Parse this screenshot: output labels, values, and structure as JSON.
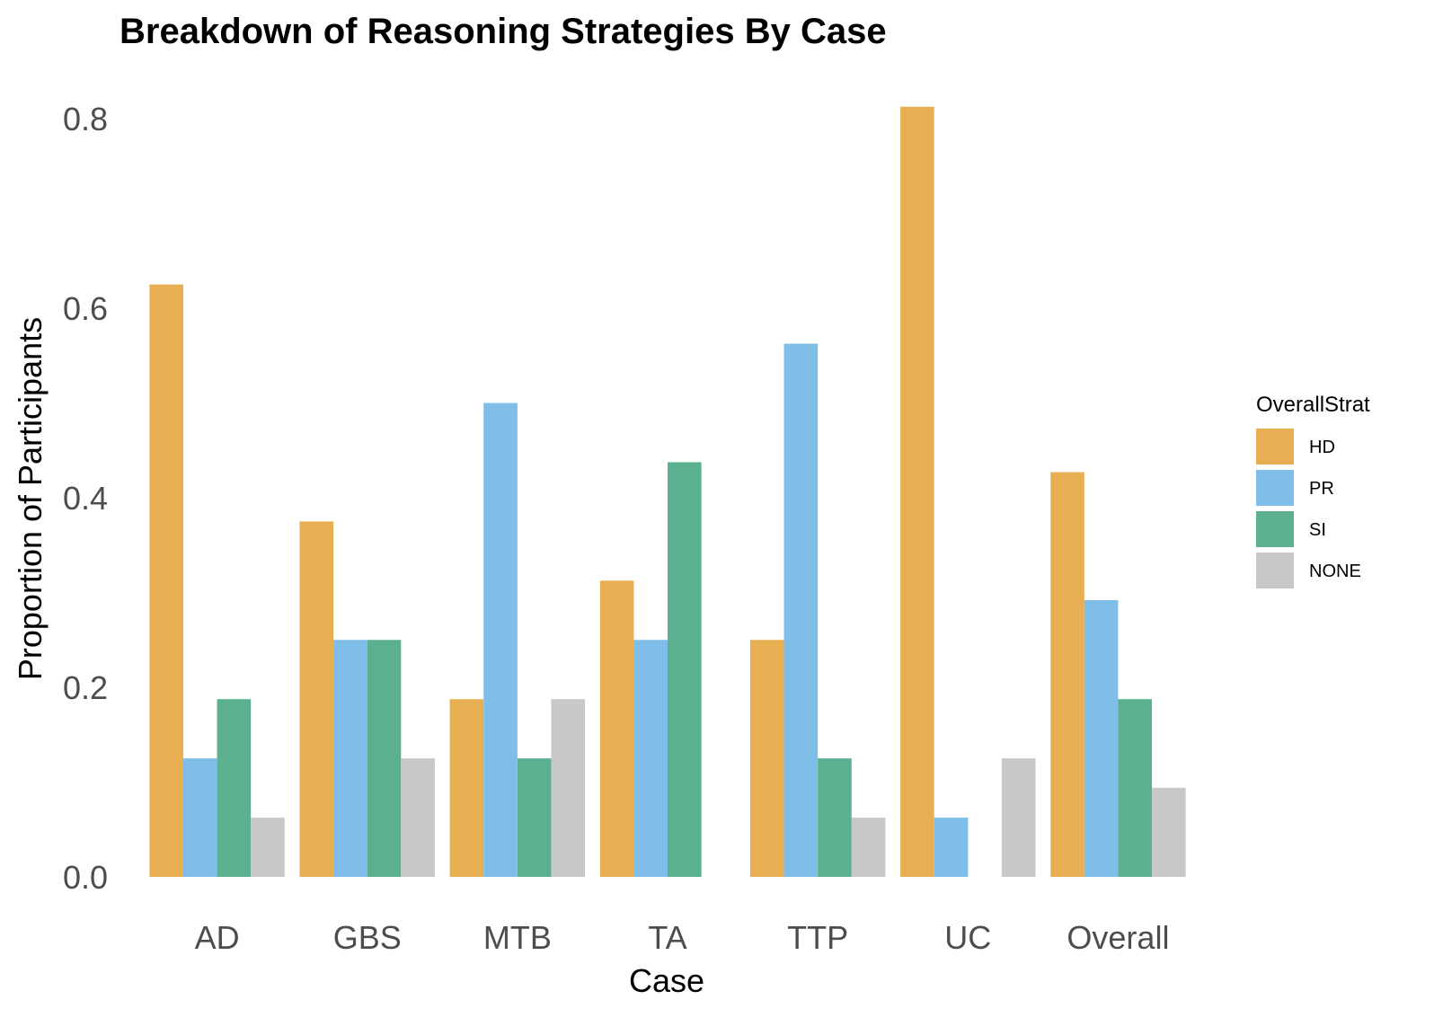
{
  "chart_data": {
    "type": "bar",
    "title": "Breakdown of Reasoning Strategies By Case",
    "xlabel": "Case",
    "ylabel": "Proportion of Participants",
    "categories": [
      "AD",
      "GBS",
      "MTB",
      "TA",
      "TTP",
      "UC",
      "Overall"
    ],
    "ylim": [
      0,
      0.8
    ],
    "yticks": [
      "0.0",
      "0.2",
      "0.4",
      "0.6",
      "0.8"
    ],
    "grid": false,
    "legend": {
      "title": "OverallStrat",
      "placement": "right"
    },
    "series": [
      {
        "name": "HD",
        "color": "#E8AF52",
        "values": [
          0.625,
          0.375,
          0.1875,
          0.3125,
          0.25,
          0.8125,
          0.427
        ]
      },
      {
        "name": "PR",
        "color": "#80BEEA",
        "values": [
          0.125,
          0.25,
          0.5,
          0.25,
          0.5625,
          0.0625,
          0.292
        ]
      },
      {
        "name": "SI",
        "color": "#5BB18F",
        "values": [
          0.1875,
          0.25,
          0.125,
          0.4375,
          0.125,
          0.0,
          0.1875
        ]
      },
      {
        "name": "NONE",
        "color": "#C8C8C8",
        "values": [
          0.0625,
          0.125,
          0.1875,
          0.0,
          0.0625,
          0.125,
          0.094
        ]
      }
    ]
  }
}
